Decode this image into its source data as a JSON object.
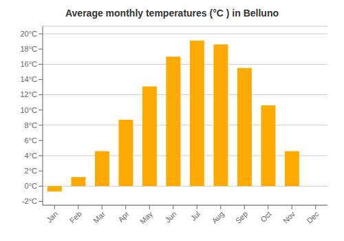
{
  "chart_data": {
    "type": "bar",
    "title": "Average monthly temperatures (°C ) in Belluno",
    "categories": [
      "Jan",
      "Feb",
      "Mar",
      "Apr",
      "May",
      "Jun",
      "Jul",
      "Aug",
      "Sep",
      "Oct",
      "Nov",
      "Dec"
    ],
    "values": [
      -0.7,
      1.2,
      4.6,
      8.7,
      13.1,
      17.0,
      19.1,
      18.6,
      15.5,
      10.6,
      4.6,
      0.0
    ],
    "color": "#FFAA00",
    "ylim": [
      -2.5,
      21
    ],
    "yticks": [
      {
        "value": -2,
        "label": "-2°C"
      },
      {
        "value": 0,
        "label": "0°C"
      },
      {
        "value": 2,
        "label": "2°C"
      },
      {
        "value": 4,
        "label": "4°C"
      },
      {
        "value": 6,
        "label": "6°C"
      },
      {
        "value": 8,
        "label": "8°C"
      },
      {
        "value": 10,
        "label": "10°C"
      },
      {
        "value": 12,
        "label": "12°C"
      },
      {
        "value": 14,
        "label": "14°C"
      },
      {
        "value": 16,
        "label": "16°C"
      },
      {
        "value": 18,
        "label": "18°C"
      },
      {
        "value": 20,
        "label": "20°C"
      }
    ],
    "grid": true
  }
}
